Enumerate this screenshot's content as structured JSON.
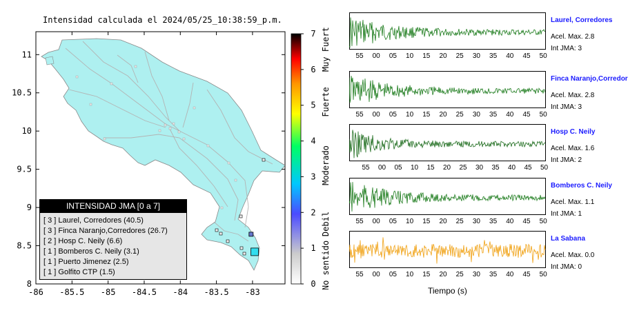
{
  "map": {
    "title": "Intensidad calculada el 2024/05/25_10:38:59_p.m.",
    "x_ticks": [
      "-86",
      "-85.5",
      "-85",
      "-84.5",
      "-84",
      "-83.5",
      "-83"
    ],
    "x_values": [
      -86,
      -85.5,
      -85,
      -84.5,
      -84,
      -83.5,
      -83
    ],
    "y_ticks": [
      "8",
      "8.5",
      "9",
      "9.5",
      "10",
      "10.5",
      "11"
    ],
    "y_values": [
      8,
      8.5,
      9,
      9.5,
      10,
      10.5,
      11
    ],
    "lon_range": [
      -86,
      -82.55
    ],
    "lat_range": [
      8,
      11.3
    ],
    "land_color": "#aef0f0",
    "road_color": "#b3b3b3",
    "stations": [
      {
        "lon": -82.97,
        "lat": 8.42,
        "color": "#33ddee",
        "shape": "large-square"
      },
      {
        "lon": -83.02,
        "lat": 8.65,
        "color": "#6677cc",
        "shape": "small-square"
      }
    ]
  },
  "colorbar": {
    "ticks": [
      "0",
      "1",
      "2",
      "3",
      "4",
      "5",
      "6",
      "7"
    ],
    "labels": [
      "No sentido",
      "Debil",
      "Moderado",
      "Fuerte",
      "Muy Fuerte"
    ],
    "colors": [
      "#ffffff",
      "#cccccc",
      "#4b4bff",
      "#00c8ff",
      "#00ff64",
      "#ffff00",
      "#ff9600",
      "#ff0000",
      "#000000"
    ]
  },
  "legend": {
    "header": "INTENSIDAD JMA [0 a 7]",
    "rows": [
      "[ 3 ]  Laurel, Corredores (40.5)",
      "[ 3 ]  Finca Naranjo,Corredores (26.7)",
      "[ 2 ]  Hosp C. Neily (6.6)",
      "[ 1 ]  Bomberos C. Neily (3.1)",
      "[ 1 ]  Puerto Jimenez (2.5)",
      "[ 1 ]  Golfito CTP (1.5)"
    ]
  },
  "traces": {
    "xlabel": "Tiempo (s)",
    "stations": [
      {
        "name": "Laurel, Corredores",
        "accel": "Acel. Max. 2.8",
        "jma": "Int JMA: 3",
        "color": "#1a7a1a",
        "ticks": [
          "55",
          "00",
          "05",
          "10",
          "15",
          "20",
          "25",
          "30",
          "35",
          "40",
          "45",
          "50"
        ]
      },
      {
        "name": "Finca Naranjo,Corredores",
        "accel": "Acel. Max. 2.8",
        "jma": "Int JMA: 3",
        "color": "#1a7a1a",
        "ticks": [
          "55",
          "00",
          "05",
          "10",
          "15",
          "20",
          "25",
          "30",
          "35",
          "40",
          "45",
          "50"
        ]
      },
      {
        "name": "Hosp C. Neily",
        "accel": "Acel. Max. 1.6",
        "jma": "Int JMA: 2",
        "color": "#1a6a1a",
        "ticks": [
          "55",
          "00",
          "05",
          "10",
          "15",
          "20",
          "25",
          "30",
          "35",
          "40",
          "45",
          "50"
        ]
      },
      {
        "name": "Bomberos C. Neily",
        "accel": "Acel. Max. 1.1",
        "jma": "Int JMA: 1",
        "color": "#1a7a1a",
        "ticks": [
          "55",
          "00",
          "05",
          "10",
          "15",
          "20",
          "25",
          "30",
          "35",
          "40",
          "45",
          "50"
        ]
      },
      {
        "name": "La Sabana",
        "accel": "Acel. Max. 0.0",
        "jma": "Int JMA: 0",
        "color": "#f0a010",
        "ticks": [
          "55",
          "00",
          "05",
          "10",
          "15",
          "20",
          "25",
          "30",
          "35",
          "40",
          "45",
          "50"
        ]
      }
    ]
  }
}
